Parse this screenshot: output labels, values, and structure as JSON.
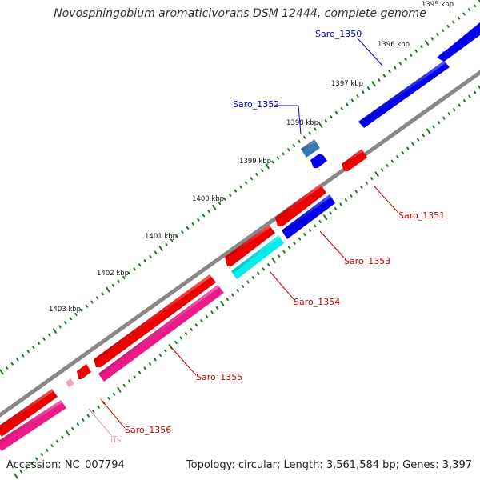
{
  "title": "Novosphingobium aromaticivorans DSM 12444, complete genome",
  "footer": {
    "accession": "Accession: NC_007794",
    "stats": "Topology: circular; Length: 3,561,584 bp; Genes: 3,397"
  },
  "ticks": [
    {
      "label": "1395 kbp"
    },
    {
      "label": "1396 kbp"
    },
    {
      "label": "1397 kbp"
    },
    {
      "label": "1398 kbp"
    },
    {
      "label": "1399 kbp"
    },
    {
      "label": "1400 kbp"
    },
    {
      "label": "1401 kbp"
    },
    {
      "label": "1402 kbp"
    },
    {
      "label": "1403 kbp"
    }
  ],
  "genes": [
    {
      "name": "Saro_1350",
      "strand": "forward",
      "color": "#0000ee"
    },
    {
      "name": "Saro_1351",
      "strand": "reverse",
      "color": "#ee0000"
    },
    {
      "name": "Saro_1352",
      "strand": "forward",
      "color": "#3a78b4"
    },
    {
      "name": "Saro_1353",
      "strand": "reverse",
      "color": "#0000ee"
    },
    {
      "name": "Saro_1354",
      "strand": "reverse",
      "color": "#00eeee"
    },
    {
      "name": "Saro_1355",
      "strand": "reverse",
      "color": "#ee1a8a"
    },
    {
      "name": "Saro_1356",
      "strand": "reverse",
      "color": "#ee0000"
    },
    {
      "name": "ffs",
      "strand": "reverse",
      "color": "#f4a0c8"
    }
  ],
  "colors": {
    "backbone": "#888888",
    "tick_major": "#1a7a1a",
    "tick_minor": "#1a7a1a",
    "forward_label": "#0000cc",
    "reverse_label": "#cc0000",
    "rna_label": "#f08cbe"
  }
}
